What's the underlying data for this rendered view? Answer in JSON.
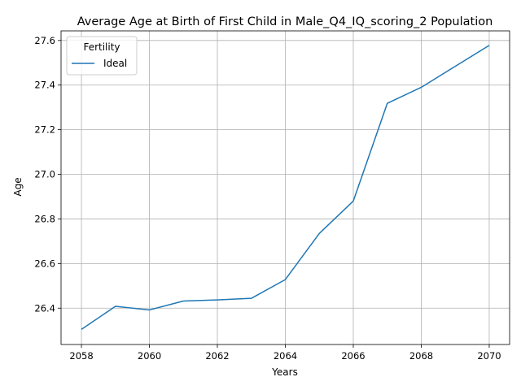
{
  "chart_data": {
    "type": "line",
    "title": "Average Age at Birth of First Child in Male_Q4_IQ_scoring_2 Population",
    "xlabel": "Years",
    "ylabel": "Age",
    "xlim": [
      2057.4,
      2070.6
    ],
    "ylim": [
      26.237,
      27.643
    ],
    "x_ticks": [
      2058,
      2060,
      2062,
      2064,
      2066,
      2068,
      2070
    ],
    "y_ticks": [
      26.4,
      26.6,
      26.8,
      27.0,
      27.2,
      27.4,
      27.6
    ],
    "x_tick_labels": [
      "2058",
      "2060",
      "2062",
      "2064",
      "2066",
      "2068",
      "2070"
    ],
    "y_tick_labels": [
      "26.4",
      "26.6",
      "26.8",
      "27.0",
      "27.2",
      "27.4",
      "27.6"
    ],
    "grid": true,
    "legend": {
      "title": "Fertility",
      "position": "top-left"
    },
    "series": [
      {
        "name": "Ideal",
        "color": "#1f77b4",
        "x": [
          2058,
          2059,
          2060,
          2061,
          2062,
          2063,
          2064,
          2065,
          2066,
          2067,
          2068,
          2069,
          2070
        ],
        "y": [
          26.305,
          26.408,
          26.392,
          26.432,
          26.437,
          26.444,
          26.528,
          26.735,
          26.88,
          27.318,
          27.39,
          27.484,
          27.578
        ]
      }
    ]
  }
}
